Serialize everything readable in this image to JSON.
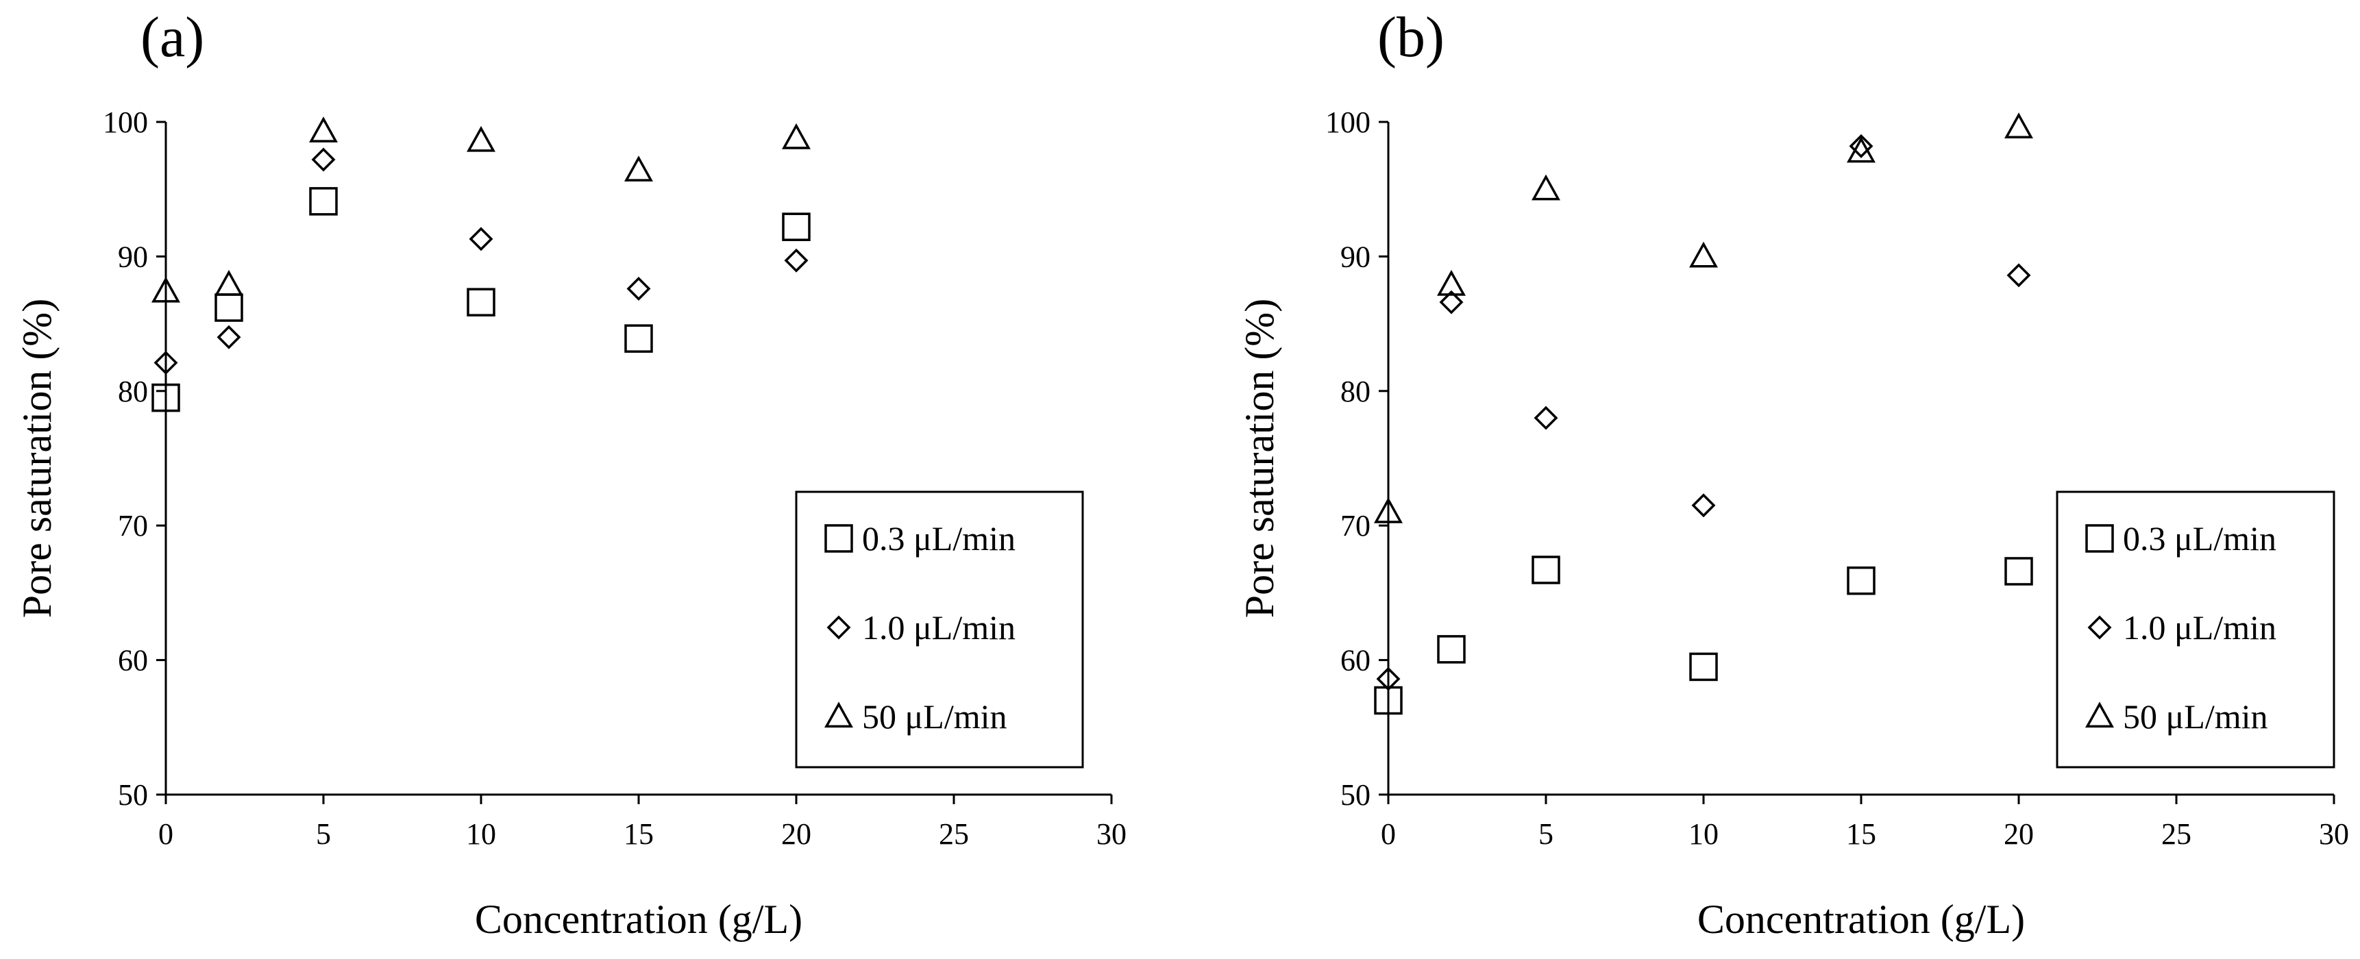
{
  "chart_data": [
    {
      "type": "scatter",
      "panel_label": "(a)",
      "xlabel": "Concentration (g/L)",
      "ylabel": "Pore saturation (%)",
      "xlim": [
        0,
        30
      ],
      "ylim": [
        50,
        100
      ],
      "xticks": [
        0,
        5,
        10,
        15,
        20,
        25,
        30
      ],
      "yticks": [
        50,
        60,
        70,
        80,
        90,
        100
      ],
      "grid": false,
      "legend": "bottom-right",
      "series": [
        {
          "name": "0.3 μL/min",
          "marker": "square",
          "x": [
            0,
            2,
            5,
            10,
            15,
            20
          ],
          "y": [
            79.5,
            86.2,
            94.1,
            86.6,
            83.9,
            92.2
          ]
        },
        {
          "name": "1.0 μL/min",
          "marker": "diamond",
          "x": [
            0,
            2,
            5,
            10,
            15,
            20
          ],
          "y": [
            82.1,
            84.0,
            97.2,
            91.3,
            87.6,
            89.7
          ]
        },
        {
          "name": "50 μL/min",
          "marker": "triangle",
          "x": [
            0,
            2,
            5,
            10,
            15,
            20
          ],
          "y": [
            87.4,
            87.9,
            99.3,
            98.6,
            96.4,
            98.8
          ]
        }
      ]
    },
    {
      "type": "scatter",
      "panel_label": "(b)",
      "xlabel": "Concentration (g/L)",
      "ylabel": "Pore saturation (%)",
      "xlim": [
        0,
        30
      ],
      "ylim": [
        50,
        100
      ],
      "xticks": [
        0,
        5,
        10,
        15,
        20,
        25,
        30
      ],
      "yticks": [
        50,
        60,
        70,
        80,
        90,
        100
      ],
      "grid": false,
      "legend": "bottom-right",
      "series": [
        {
          "name": "0.3 μL/min",
          "marker": "square",
          "x": [
            0,
            2,
            5,
            10,
            15,
            20
          ],
          "y": [
            57.0,
            60.8,
            66.7,
            59.5,
            65.9,
            66.6
          ]
        },
        {
          "name": "1.0 μL/min",
          "marker": "diamond",
          "x": [
            0,
            2,
            5,
            10,
            15,
            20
          ],
          "y": [
            58.6,
            86.6,
            78.0,
            71.5,
            98.2,
            88.6
          ]
        },
        {
          "name": "50 μL/min",
          "marker": "triangle",
          "x": [
            0,
            2,
            5,
            10,
            15,
            20
          ],
          "y": [
            71.0,
            87.9,
            95.0,
            90.0,
            97.8,
            99.6
          ]
        }
      ]
    }
  ]
}
